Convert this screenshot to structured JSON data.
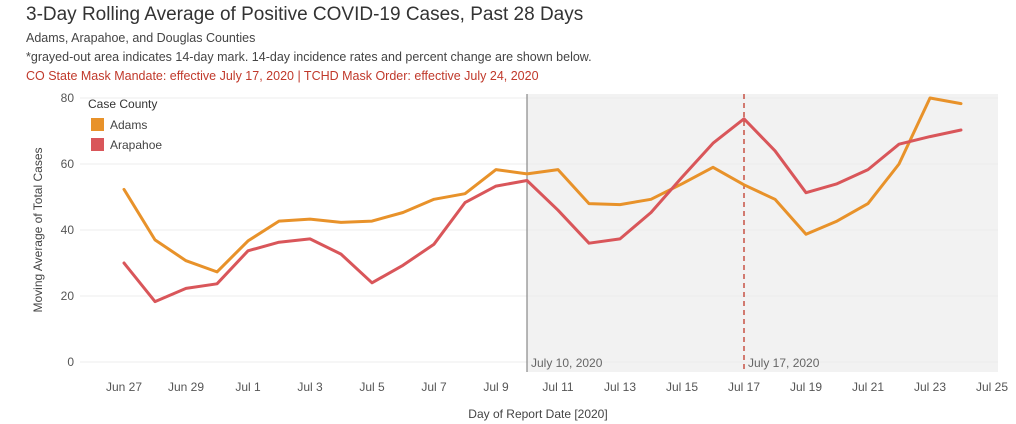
{
  "header": {
    "title": "3-Day Rolling Average of Positive COVID-19 Cases, Past 28 Days",
    "subtitle": "Adams, Arapahoe, and Douglas Counties",
    "note": "*grayed-out area indicates 14-day mark. 14-day incidence rates and percent change are shown below.",
    "mandate": "CO State Mask Mandate: effective July 17, 2020 | TCHD Mask Order: effective July 24, 2020"
  },
  "colors": {
    "adams": "#e8922a",
    "arapahoe": "#d9565a",
    "shade": "#f2f2f2",
    "mandate_line": "#c0392b",
    "ref_line": "#888888"
  },
  "chart_data": {
    "type": "line",
    "xlabel": "Day of Report Date [2020]",
    "ylabel": "Moving Average of Total Cases",
    "ylim": [
      0,
      84
    ],
    "yticks": [
      0,
      20,
      40,
      60,
      80
    ],
    "x": [
      "2020-06-27",
      "2020-06-28",
      "2020-06-29",
      "2020-06-30",
      "2020-07-01",
      "2020-07-02",
      "2020-07-03",
      "2020-07-04",
      "2020-07-05",
      "2020-07-06",
      "2020-07-07",
      "2020-07-08",
      "2020-07-09",
      "2020-07-10",
      "2020-07-11",
      "2020-07-12",
      "2020-07-13",
      "2020-07-14",
      "2020-07-15",
      "2020-07-16",
      "2020-07-17",
      "2020-07-18",
      "2020-07-19",
      "2020-07-20",
      "2020-07-21",
      "2020-07-22",
      "2020-07-23",
      "2020-07-24"
    ],
    "xticks": [
      {
        "date": "2020-06-27",
        "label": "Jun 27"
      },
      {
        "date": "2020-06-29",
        "label": "Jun 29"
      },
      {
        "date": "2020-07-01",
        "label": "Jul 1"
      },
      {
        "date": "2020-07-03",
        "label": "Jul 3"
      },
      {
        "date": "2020-07-05",
        "label": "Jul 5"
      },
      {
        "date": "2020-07-07",
        "label": "Jul 7"
      },
      {
        "date": "2020-07-09",
        "label": "Jul 9"
      },
      {
        "date": "2020-07-11",
        "label": "Jul 11"
      },
      {
        "date": "2020-07-13",
        "label": "Jul 13"
      },
      {
        "date": "2020-07-15",
        "label": "Jul 15"
      },
      {
        "date": "2020-07-17",
        "label": "Jul 17"
      },
      {
        "date": "2020-07-19",
        "label": "Jul 19"
      },
      {
        "date": "2020-07-21",
        "label": "Jul 21"
      },
      {
        "date": "2020-07-23",
        "label": "Jul 23"
      },
      {
        "date": "2020-07-25",
        "label": "Jul 25"
      }
    ],
    "series": [
      {
        "name": "Adams",
        "color": "#e8922a",
        "values": [
          52.3,
          37.0,
          30.7,
          27.3,
          36.7,
          42.7,
          43.3,
          42.3,
          42.7,
          45.3,
          49.3,
          51.0,
          58.3,
          57.0,
          58.3,
          48.0,
          47.7,
          49.3,
          54.0,
          59.0,
          53.7,
          49.3,
          38.7,
          42.7,
          48.0,
          60.0,
          80.0,
          78.3
        ]
      },
      {
        "name": "Arapahoe",
        "color": "#d9565a",
        "values": [
          30.0,
          18.3,
          22.3,
          23.7,
          33.7,
          36.3,
          37.3,
          32.7,
          24.0,
          29.3,
          35.7,
          48.3,
          53.3,
          55.0,
          46.0,
          36.0,
          37.3,
          45.3,
          56.0,
          66.3,
          73.7,
          64.0,
          51.3,
          54.0,
          58.3,
          66.0,
          68.3,
          70.3
        ]
      }
    ],
    "legend": {
      "title": "Case County",
      "placement": "top-left"
    },
    "shaded_region": {
      "start": "2020-07-10"
    },
    "annotations": [
      {
        "date": "2020-07-10",
        "label": "July 10, 2020",
        "style": "solid"
      },
      {
        "date": "2020-07-17",
        "label": "July 17, 2020",
        "style": "dashed"
      }
    ],
    "grid": true
  }
}
